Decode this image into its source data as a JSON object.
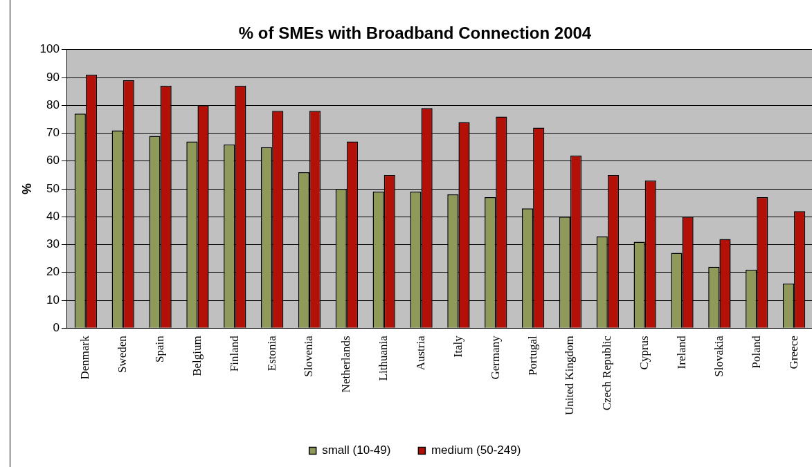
{
  "chart_data": {
    "type": "bar",
    "title": "% of SMEs with Broadband Connection 2004",
    "ylabel": "%",
    "categories": [
      "Denmark",
      "Sweden",
      "Spain",
      "Belgium",
      "Finland",
      "Estonia",
      "Slovenia",
      "Netherlands",
      "Lithuania",
      "Austria",
      "Italy",
      "Germany",
      "Portugal",
      "United Kingdom",
      "Czech Republic",
      "Cyprus",
      "Ireland",
      "Slovakia",
      "Poland",
      "Greece"
    ],
    "series": [
      {
        "name": "small (10-49)",
        "color": "#8f9a5a",
        "values": [
          77,
          71,
          69,
          67,
          66,
          65,
          56,
          50,
          49,
          49,
          48,
          47,
          43,
          40,
          33,
          31,
          27,
          22,
          21,
          16
        ]
      },
      {
        "name": "medium (50-249)",
        "color": "#b31108",
        "values": [
          91,
          89,
          87,
          80,
          87,
          78,
          78,
          67,
          55,
          79,
          74,
          76,
          72,
          62,
          55,
          53,
          40,
          32,
          47,
          42
        ]
      }
    ],
    "ylim": [
      0,
      100
    ],
    "yticks": [
      0,
      10,
      20,
      30,
      40,
      50,
      60,
      70,
      80,
      90,
      100
    ],
    "grid": "y",
    "legend": "bottom"
  }
}
